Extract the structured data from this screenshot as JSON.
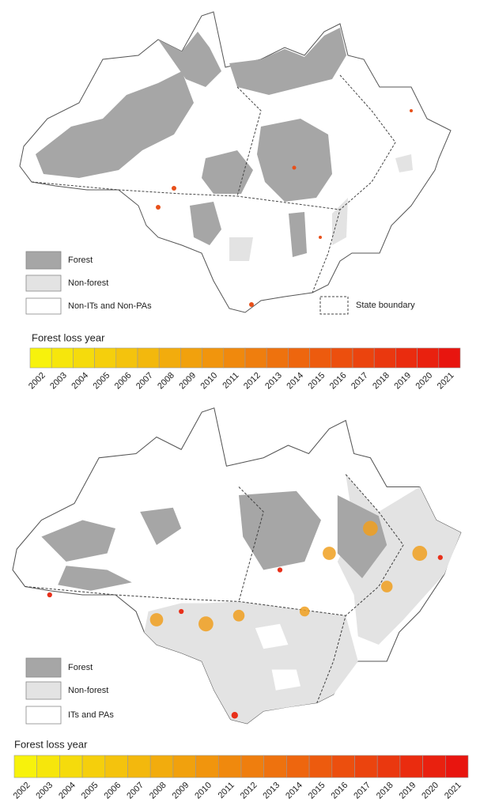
{
  "panels": [
    {
      "legend": [
        {
          "label": "Forest",
          "color": "#a6a6a6"
        },
        {
          "label": "Non-forest",
          "color": "#e3e3e3"
        },
        {
          "label": "Non-ITs and Non-PAs",
          "color": "#ffffff"
        }
      ],
      "boundary_label": "State boundary",
      "colorbar": {
        "title": "Forest loss year",
        "labels": [
          "2002",
          "2003",
          "2004",
          "2005",
          "2006",
          "2007",
          "2008",
          "2009",
          "2010",
          "2011",
          "2012",
          "2013",
          "2014",
          "2015",
          "2016",
          "2017",
          "2018",
          "2019",
          "2020",
          "2021"
        ]
      }
    },
    {
      "legend": [
        {
          "label": "Forest",
          "color": "#a6a6a6"
        },
        {
          "label": "Non-forest",
          "color": "#e3e3e3"
        },
        {
          "label": "ITs and PAs",
          "color": "#ffffff"
        }
      ],
      "colorbar": {
        "title": "Forest loss year",
        "labels": [
          "2002",
          "2003",
          "2004",
          "2005",
          "2006",
          "2007",
          "2008",
          "2009",
          "2010",
          "2011",
          "2012",
          "2013",
          "2014",
          "2015",
          "2016",
          "2017",
          "2018",
          "2019",
          "2020",
          "2021"
        ]
      }
    }
  ],
  "colorbar_colors": [
    "#f7f20c",
    "#e8150f"
  ]
}
